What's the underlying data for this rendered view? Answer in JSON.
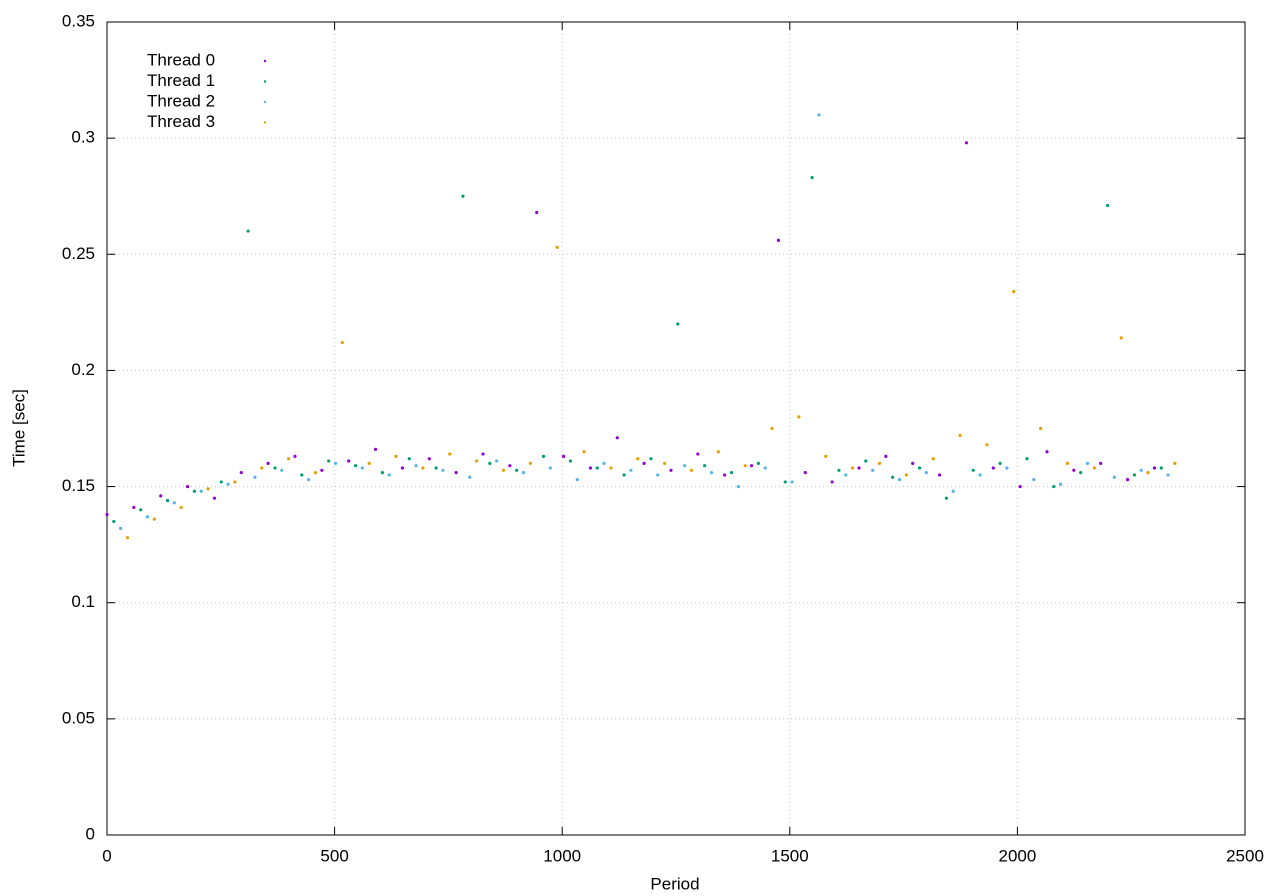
{
  "chart_data": {
    "type": "scatter",
    "xlabel": "Period",
    "ylabel": "Time [sec]",
    "xlim": [
      0,
      2500
    ],
    "xticks": [
      0,
      500,
      1000,
      1500,
      2000,
      2500
    ],
    "ylim": [
      0,
      0.35
    ],
    "yticks": [
      0,
      0.05,
      0.1,
      0.15,
      0.2,
      0.25,
      0.3,
      0.35
    ],
    "grid": true,
    "legend": "top-left",
    "series": [
      {
        "name": "Thread 0",
        "color": "#9400d3",
        "x": [
          0,
          59,
          118,
          177,
          236,
          295,
          354,
          413,
          472,
          531,
          590,
          649,
          708,
          767,
          826,
          885,
          944,
          1003,
          1062,
          1121,
          1180,
          1239,
          1298,
          1357,
          1416,
          1475,
          1534,
          1593,
          1652,
          1711,
          1770,
          1829,
          1888,
          1947,
          2006,
          2065,
          2124,
          2183,
          2242,
          2301
        ],
        "values": [
          0.138,
          0.141,
          0.146,
          0.15,
          0.145,
          0.156,
          0.16,
          0.163,
          0.157,
          0.161,
          0.166,
          0.158,
          0.162,
          0.156,
          0.164,
          0.159,
          0.268,
          0.163,
          0.158,
          0.171,
          0.16,
          0.157,
          0.164,
          0.155,
          0.159,
          0.256,
          0.156,
          0.152,
          0.158,
          0.163,
          0.16,
          0.155,
          0.298,
          0.158,
          0.15,
          0.165,
          0.157,
          0.16,
          0.153,
          0.158
        ]
      },
      {
        "name": "Thread 1",
        "color": "#009e73",
        "x": [
          15,
          74,
          133,
          192,
          251,
          310,
          369,
          428,
          487,
          546,
          605,
          664,
          723,
          782,
          841,
          900,
          959,
          1018,
          1077,
          1136,
          1195,
          1254,
          1313,
          1372,
          1431,
          1490,
          1549,
          1608,
          1667,
          1726,
          1785,
          1844,
          1903,
          1962,
          2021,
          2080,
          2139,
          2198,
          2257,
          2316
        ],
        "values": [
          0.135,
          0.14,
          0.144,
          0.148,
          0.152,
          0.26,
          0.158,
          0.155,
          0.161,
          0.159,
          0.156,
          0.162,
          0.158,
          0.275,
          0.16,
          0.157,
          0.163,
          0.161,
          0.158,
          0.155,
          0.162,
          0.22,
          0.159,
          0.156,
          0.16,
          0.152,
          0.283,
          0.157,
          0.161,
          0.154,
          0.158,
          0.145,
          0.157,
          0.16,
          0.162,
          0.15,
          0.156,
          0.271,
          0.155,
          0.158
        ]
      },
      {
        "name": "Thread 2",
        "color": "#56b4e9",
        "x": [
          30,
          89,
          148,
          207,
          266,
          325,
          384,
          443,
          502,
          561,
          620,
          679,
          738,
          797,
          856,
          915,
          974,
          1033,
          1092,
          1151,
          1210,
          1269,
          1328,
          1387,
          1446,
          1505,
          1564,
          1623,
          1682,
          1741,
          1800,
          1859,
          1918,
          1977,
          2036,
          2095,
          2154,
          2213,
          2272,
          2331
        ],
        "values": [
          0.132,
          0.137,
          0.143,
          0.148,
          0.151,
          0.154,
          0.157,
          0.153,
          0.16,
          0.158,
          0.155,
          0.159,
          0.157,
          0.154,
          0.161,
          0.156,
          0.158,
          0.153,
          0.16,
          0.157,
          0.155,
          0.159,
          0.156,
          0.15,
          0.158,
          0.152,
          0.31,
          0.155,
          0.157,
          0.153,
          0.156,
          0.148,
          0.155,
          0.158,
          0.153,
          0.151,
          0.16,
          0.154,
          0.157,
          0.155
        ]
      },
      {
        "name": "Thread 3",
        "color": "#e69f00",
        "x": [
          45,
          104,
          163,
          222,
          281,
          340,
          399,
          458,
          517,
          576,
          635,
          694,
          753,
          812,
          871,
          930,
          989,
          1048,
          1107,
          1166,
          1225,
          1284,
          1343,
          1402,
          1461,
          1520,
          1579,
          1638,
          1697,
          1756,
          1815,
          1874,
          1933,
          1992,
          2051,
          2110,
          2169,
          2228,
          2287,
          2346
        ],
        "values": [
          0.128,
          0.136,
          0.141,
          0.149,
          0.152,
          0.158,
          0.162,
          0.156,
          0.212,
          0.16,
          0.163,
          0.158,
          0.164,
          0.161,
          0.157,
          0.16,
          0.253,
          0.165,
          0.158,
          0.162,
          0.16,
          0.157,
          0.165,
          0.159,
          0.175,
          0.18,
          0.163,
          0.158,
          0.16,
          0.155,
          0.162,
          0.172,
          0.168,
          0.234,
          0.175,
          0.16,
          0.158,
          0.214,
          0.156,
          0.16
        ]
      }
    ]
  }
}
